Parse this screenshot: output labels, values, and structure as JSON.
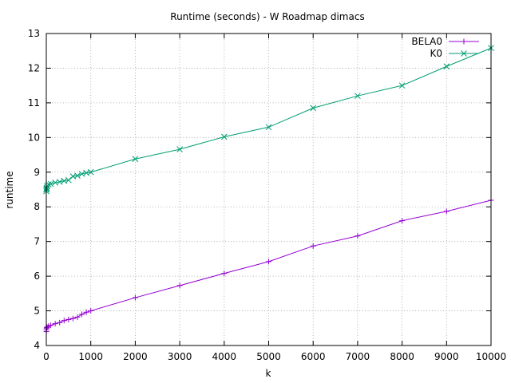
{
  "chart_data": {
    "type": "line",
    "title": "Runtime (seconds) - W Roadmap dimacs",
    "xlabel": "k",
    "ylabel": "runtime",
    "xlim": [
      0,
      10000
    ],
    "ylim": [
      4,
      13
    ],
    "xticks": [
      0,
      1000,
      2000,
      3000,
      4000,
      5000,
      6000,
      7000,
      8000,
      9000,
      10000
    ],
    "yticks": [
      4,
      5,
      6,
      7,
      8,
      9,
      10,
      11,
      12,
      13
    ],
    "grid": true,
    "legend_position": "top-right",
    "series": [
      {
        "name": "BELA0",
        "color": "#9400d3",
        "marker": "plus",
        "x": [
          1,
          2,
          5,
          10,
          20,
          50,
          100,
          200,
          300,
          400,
          500,
          600,
          700,
          800,
          900,
          1000,
          2000,
          3000,
          4000,
          5000,
          6000,
          7000,
          8000,
          9000,
          10000
        ],
        "y": [
          4.4,
          4.45,
          4.5,
          4.52,
          4.53,
          4.56,
          4.58,
          4.63,
          4.66,
          4.72,
          4.75,
          4.78,
          4.82,
          4.9,
          4.96,
          5.0,
          5.38,
          5.73,
          6.08,
          6.42,
          6.87,
          7.16,
          7.6,
          7.87,
          8.19
        ]
      },
      {
        "name": "K0",
        "color": "#009e73",
        "marker": "cross",
        "x": [
          1,
          2,
          5,
          10,
          20,
          50,
          100,
          200,
          300,
          400,
          500,
          600,
          700,
          800,
          900,
          1000,
          2000,
          3000,
          4000,
          5000,
          6000,
          7000,
          8000,
          9000,
          10000
        ],
        "y": [
          8.45,
          8.5,
          8.52,
          8.55,
          8.6,
          8.65,
          8.66,
          8.7,
          8.72,
          8.75,
          8.77,
          8.88,
          8.9,
          8.95,
          8.98,
          9.0,
          9.38,
          9.66,
          10.02,
          10.3,
          10.85,
          11.2,
          11.5,
          12.05,
          12.58
        ]
      }
    ]
  }
}
